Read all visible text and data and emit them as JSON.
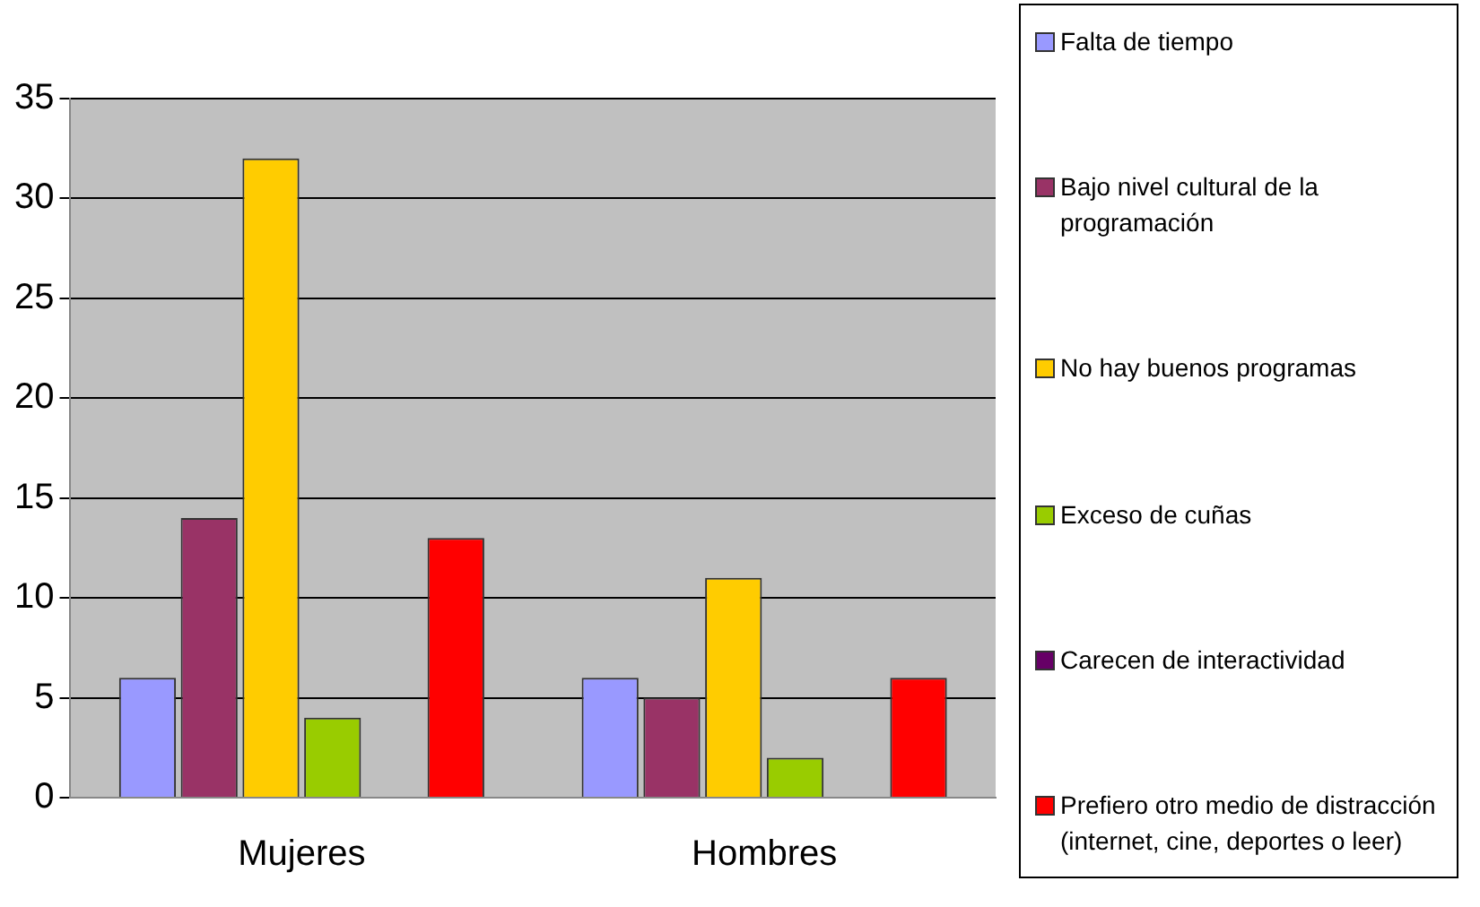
{
  "chart_data": {
    "type": "bar",
    "categories": [
      "Mujeres",
      "Hombres"
    ],
    "series": [
      {
        "name": "Falta de tiempo",
        "color": "#9999ff",
        "values": [
          6,
          6
        ]
      },
      {
        "name": "Bajo nivel cultural de la programación",
        "color": "#993366",
        "values": [
          14,
          5
        ]
      },
      {
        "name": "No hay buenos programas",
        "color": "#ffcc00",
        "values": [
          32,
          11
        ]
      },
      {
        "name": "Exceso de cuñas",
        "color": "#99cc00",
        "values": [
          4,
          2
        ]
      },
      {
        "name": "Carecen de interactividad",
        "color": "#660066",
        "values": [
          0,
          0
        ]
      },
      {
        "name": "Prefiero otro medio de distracción  (internet, cine, deportes o leer)",
        "color": "#ff0000",
        "values": [
          13,
          6
        ]
      }
    ],
    "ylim": [
      0,
      35
    ],
    "yticks": [
      0,
      5,
      10,
      15,
      20,
      25,
      30,
      35
    ],
    "grid": "y",
    "legend": "right"
  }
}
